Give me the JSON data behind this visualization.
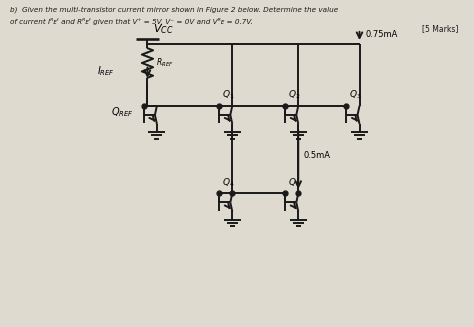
{
  "title_line1": "b)  Given the multi-transistor current mirror shown in Figure 2 below. Determine the value",
  "title_line2": "of current Iᴿᴇᶠ and Rᴿᴇᶠ given that V⁺ = 5V, V⁻ = 0V and Vᴿᴇ = 0.7V.",
  "marks": "[5 Marks]",
  "bg_color": "#dedad0",
  "line_color": "#1a1a1a",
  "text_color": "#1a1a1a",
  "vcc_label": "$V_{CC}$",
  "iref_label": "$I_{REF}$",
  "rref_label": "$R_{REF}$",
  "qref_label": "$Q_{REF}$",
  "q1_label": "$Q_1$",
  "q2_label": "$Q_2$",
  "q3_label": "$Q_3$",
  "q4_label": "$Q_4$",
  "q5_label": "$Q_5$",
  "i075_label": "0.75mA",
  "i05_label": "0.5mA",
  "lw": 1.4
}
